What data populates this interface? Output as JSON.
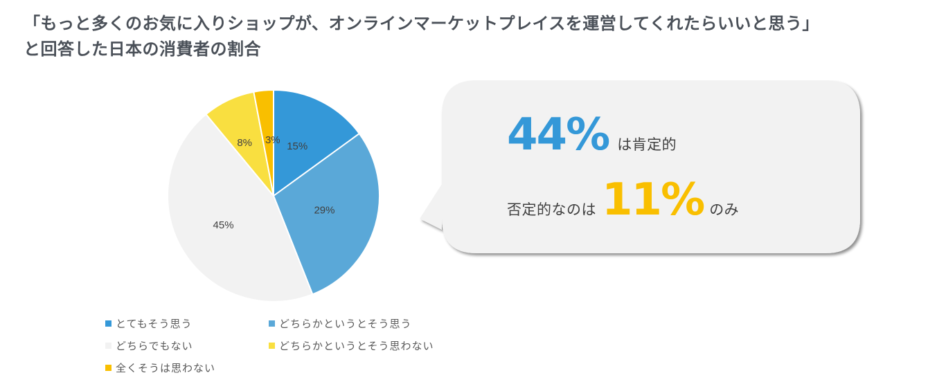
{
  "title": {
    "line1": "「もっと多くのお気に入りショップが、オンラインマーケットプレイスを運営してくれたらいいと思う」",
    "line2": "と回答した日本の消費者の割合"
  },
  "chart_data": {
    "type": "pie",
    "title": "「もっと多くのお気に入りショップが、オンラインマーケットプレイスを運営してくれたらいいと思う」と回答した日本の消費者の割合",
    "categories": [
      "とてもそう思う",
      "どちらかというとそう思う",
      "どちらでもない",
      "どちらかというとそう思わない",
      "全くそうは思わない"
    ],
    "values": [
      15,
      29,
      45,
      8,
      3
    ],
    "value_labels": [
      "15%",
      "29%",
      "45%",
      "8%",
      "3%"
    ],
    "colors": [
      "#3498d8",
      "#5aa8d8",
      "#f2f2f2",
      "#f9df40",
      "#f9bf00"
    ],
    "unit": "%",
    "start_angle_deg": 0,
    "direction": "clockwise",
    "legend_position": "bottom",
    "xlabel": "",
    "ylabel": ""
  },
  "legend": {
    "items": [
      {
        "label": "とてもそう思う",
        "color": "#3498d8"
      },
      {
        "label": "どちらかというとそう思う",
        "color": "#5aa8d8"
      },
      {
        "label": "どちらでもない",
        "color": "#f2f2f2"
      },
      {
        "label": "どちらかというとそう思わない",
        "color": "#f9df40"
      },
      {
        "label": "全くそうは思わない",
        "color": "#f9bf00"
      }
    ]
  },
  "callout": {
    "positive_value": "44%",
    "positive_text": "は肯定的",
    "negative_prefix": "否定的なのは",
    "negative_value": "11%",
    "negative_suffix": "のみ",
    "background": "#f2f2f2",
    "positive_color": "#3498d8",
    "negative_color": "#f9bf00"
  }
}
